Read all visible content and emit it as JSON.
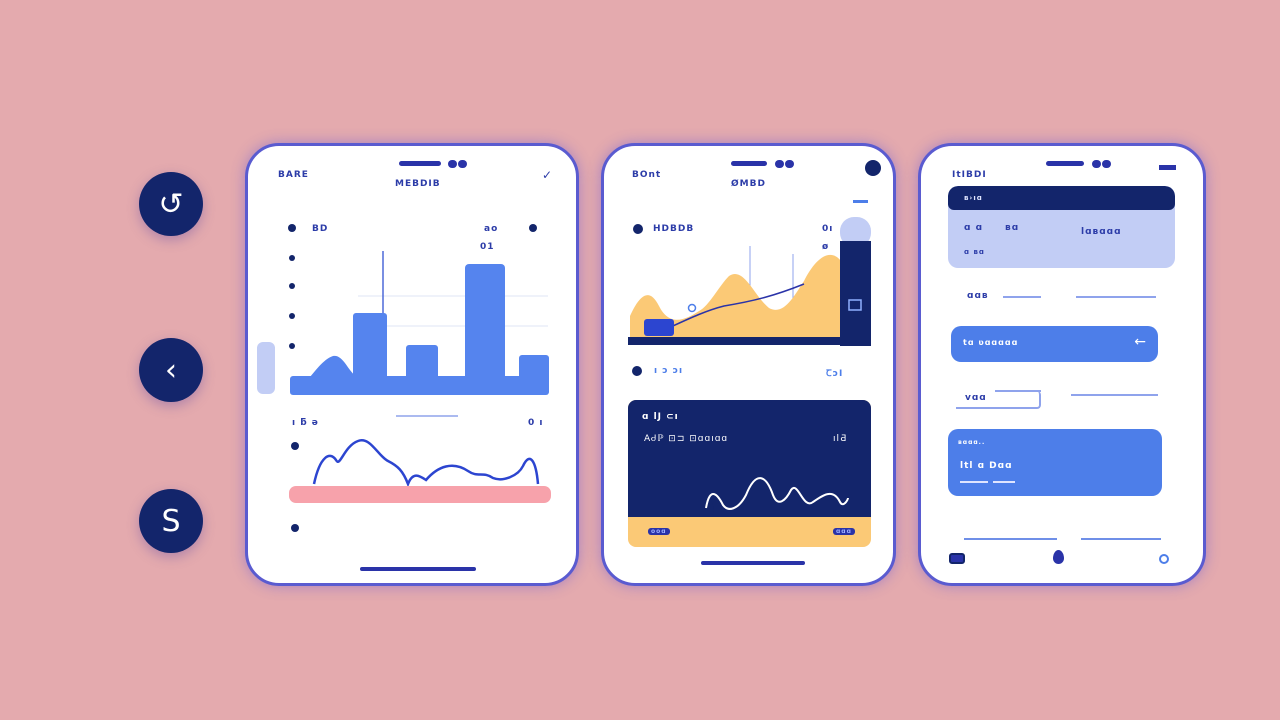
{
  "side_buttons": [
    {
      "icon": "loop-icon",
      "glyph": "↺"
    },
    {
      "icon": "back-chevron-icon",
      "glyph": "‹"
    },
    {
      "icon": "s-icon",
      "glyph": "S"
    }
  ],
  "phone1": {
    "label_left": "BARE",
    "title": "MEBDIB",
    "label_a": "BD",
    "label_b": "ao",
    "label_c": "01",
    "row_a": "ı ƃ ə",
    "row_b": "0 ı",
    "colors": {
      "bar": "#5584ee",
      "line": "#2c45d0",
      "band": "#f7a2ab"
    }
  },
  "phone2": {
    "label_left": "BOnt",
    "title": "ØMBD",
    "legend": "HDBDB",
    "side_a": "0ı",
    "side_b": "ø",
    "axis_left": "ı ɔ ɔı",
    "axis_right": "ꞆɔI",
    "card": {
      "title": "ɑ lJ ⊂ı",
      "subtitle": "AᏧℙ ⊡⊐ ⊡ɑɑıɑɑ",
      "value": "ılƋ",
      "tag_left": "ooɑ",
      "tag_right": "ɑɑɑ"
    },
    "colors": {
      "area": "#fbc976",
      "navy": "#13256b"
    }
  },
  "phone3": {
    "label_left": "ItIBDI",
    "header": "ʙ›ıɑ",
    "panel_a": "ɑ ɑ",
    "panel_b": "ʙɑ",
    "panel_c": "lɑʙɑɑɑ",
    "panel_d": "ɑ ʙɑ",
    "row_label": "ɑɑʙ",
    "button_label": "tɑ ʋɑɑɑɑɑ",
    "input_label": "vɑɑ",
    "card_small": "ʙɑɑɑ..",
    "card_value": "ltl ɑ Dɑɑ",
    "colors": {
      "accent": "#4d7ee9",
      "navy": "#13256b",
      "panel": "#c2cdf5"
    }
  }
}
